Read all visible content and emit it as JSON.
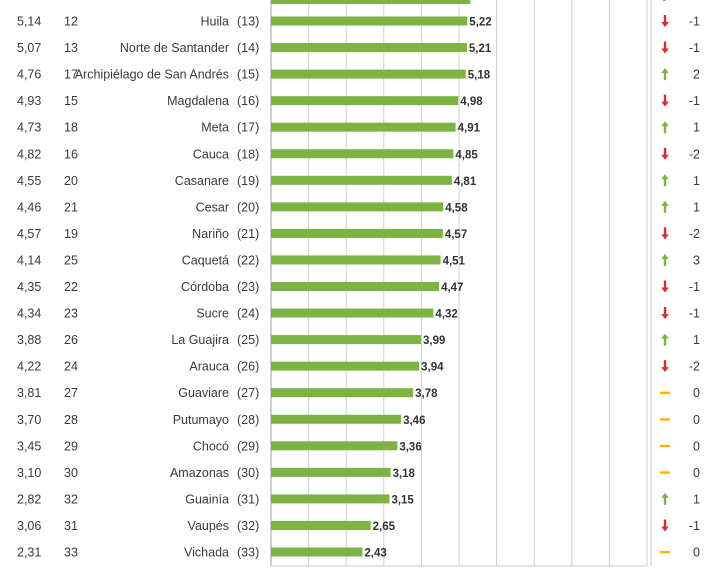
{
  "chart_data": {
    "type": "bar",
    "orientation": "horizontal",
    "grid": true,
    "xlim": [
      0,
      10
    ],
    "colors": {
      "bar": "#7cb342",
      "up": "#7cb342",
      "down": "#d32f2f",
      "same": "#f5b800"
    },
    "rows": [
      {
        "prev_value": "5,14",
        "prev_rank": "12",
        "name": "Huila",
        "rank": "(13)",
        "value": 5.22,
        "label": "5,22",
        "trend": "down",
        "change": "-1"
      },
      {
        "prev_value": "5,07",
        "prev_rank": "13",
        "name": "Norte de Santander",
        "rank": "(14)",
        "value": 5.21,
        "label": "5,21",
        "trend": "down",
        "change": "-1"
      },
      {
        "prev_value": "4,76",
        "prev_rank": "17",
        "name": "Archipiélago de San Andrés",
        "rank": "(15)",
        "value": 5.18,
        "label": "5,18",
        "trend": "up",
        "change": "2"
      },
      {
        "prev_value": "4,93",
        "prev_rank": "15",
        "name": "Magdalena",
        "rank": "(16)",
        "value": 4.98,
        "label": "4,98",
        "trend": "down",
        "change": "-1"
      },
      {
        "prev_value": "4,73",
        "prev_rank": "18",
        "name": "Meta",
        "rank": "(17)",
        "value": 4.91,
        "label": "4,91",
        "trend": "up",
        "change": "1"
      },
      {
        "prev_value": "4,82",
        "prev_rank": "16",
        "name": "Cauca",
        "rank": "(18)",
        "value": 4.85,
        "label": "4,85",
        "trend": "down",
        "change": "-2"
      },
      {
        "prev_value": "4,55",
        "prev_rank": "20",
        "name": "Casanare",
        "rank": "(19)",
        "value": 4.81,
        "label": "4,81",
        "trend": "up",
        "change": "1"
      },
      {
        "prev_value": "4,46",
        "prev_rank": "21",
        "name": "Cesar",
        "rank": "(20)",
        "value": 4.58,
        "label": "4,58",
        "trend": "up",
        "change": "1"
      },
      {
        "prev_value": "4,57",
        "prev_rank": "19",
        "name": "Nariño",
        "rank": "(21)",
        "value": 4.57,
        "label": "4,57",
        "trend": "down",
        "change": "-2"
      },
      {
        "prev_value": "4,14",
        "prev_rank": "25",
        "name": "Caquetá",
        "rank": "(22)",
        "value": 4.51,
        "label": "4,51",
        "trend": "up",
        "change": "3"
      },
      {
        "prev_value": "4,35",
        "prev_rank": "22",
        "name": "Córdoba",
        "rank": "(23)",
        "value": 4.47,
        "label": "4,47",
        "trend": "down",
        "change": "-1"
      },
      {
        "prev_value": "4,34",
        "prev_rank": "23",
        "name": "Sucre",
        "rank": "(24)",
        "value": 4.32,
        "label": "4,32",
        "trend": "down",
        "change": "-1"
      },
      {
        "prev_value": "3,88",
        "prev_rank": "26",
        "name": "La Guajira",
        "rank": "(25)",
        "value": 3.99,
        "label": "3,99",
        "trend": "up",
        "change": "1"
      },
      {
        "prev_value": "4,22",
        "prev_rank": "24",
        "name": "Arauca",
        "rank": "(26)",
        "value": 3.94,
        "label": "3,94",
        "trend": "down",
        "change": "-2"
      },
      {
        "prev_value": "3,81",
        "prev_rank": "27",
        "name": "Guaviare",
        "rank": "(27)",
        "value": 3.78,
        "label": "3,78",
        "trend": "same",
        "change": "0"
      },
      {
        "prev_value": "3,70",
        "prev_rank": "28",
        "name": "Putumayo",
        "rank": "(28)",
        "value": 3.46,
        "label": "3,46",
        "trend": "same",
        "change": "0"
      },
      {
        "prev_value": "3,45",
        "prev_rank": "29",
        "name": "Chocó",
        "rank": "(29)",
        "value": 3.36,
        "label": "3,36",
        "trend": "same",
        "change": "0"
      },
      {
        "prev_value": "3,10",
        "prev_rank": "30",
        "name": "Amazonas",
        "rank": "(30)",
        "value": 3.18,
        "label": "3,18",
        "trend": "same",
        "change": "0"
      },
      {
        "prev_value": "2,82",
        "prev_rank": "32",
        "name": "Guainía",
        "rank": "(31)",
        "value": 3.15,
        "label": "3,15",
        "trend": "up",
        "change": "1"
      },
      {
        "prev_value": "3,06",
        "prev_rank": "31",
        "name": "Vaupés",
        "rank": "(32)",
        "value": 2.65,
        "label": "2,65",
        "trend": "down",
        "change": "-1"
      },
      {
        "prev_value": "2,31",
        "prev_rank": "33",
        "name": "Vichada",
        "rank": "(33)",
        "value": 2.43,
        "label": "2,43",
        "trend": "same",
        "change": "0"
      }
    ]
  }
}
